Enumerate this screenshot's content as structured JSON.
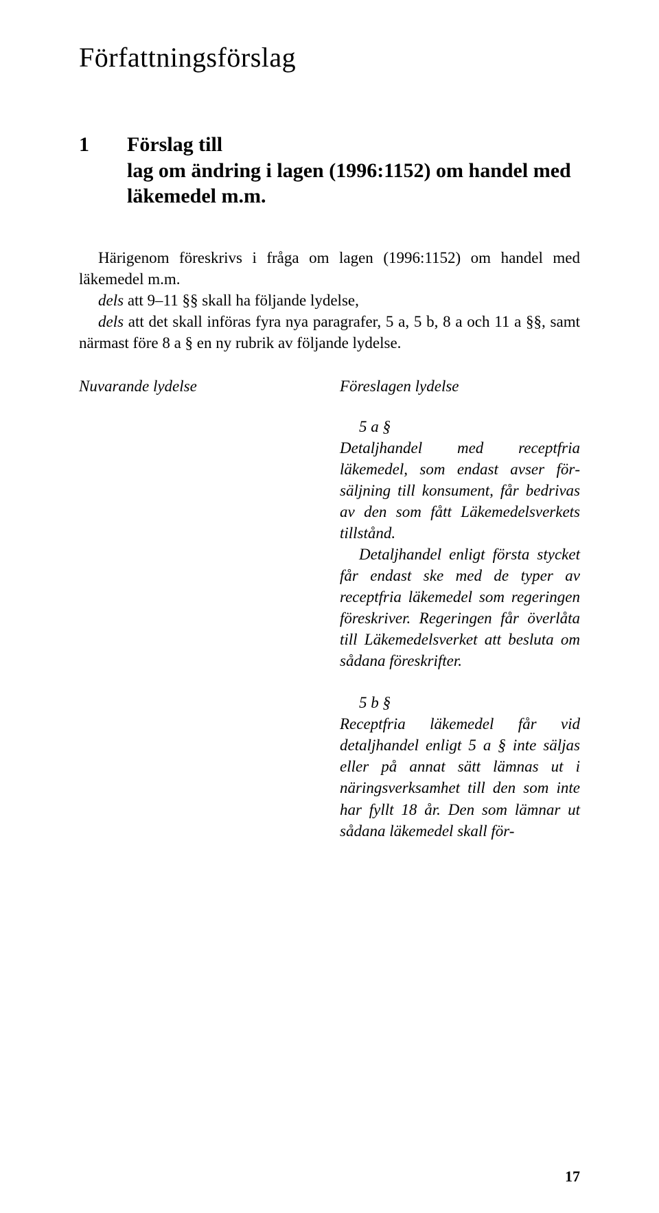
{
  "page": {
    "title": "Författningsförslag",
    "section_number": "1",
    "section_title_line1": "Förslag till",
    "section_title_line2": "lag om ändring i lagen (1996:1152) om handel med läkemedel m.m.",
    "intro_line1": "Härigenom föreskrivs i fråga om lagen (1996:1152) om handel med läkemedel m.m.",
    "intro_dels1_prefix": "dels",
    "intro_dels1_rest": " att 9–11 §§ skall ha följande lydelse,",
    "intro_dels2_prefix": "dels",
    "intro_dels2_rest": " att det skall införas fyra nya paragrafer, 5 a, 5 b, 8 a och 11 a §§, samt närmast före 8 a § en ny rubrik av följande lydelse.",
    "col_left_heading": "Nuvarande lydelse",
    "col_right_heading": "Föreslagen lydelse",
    "sec_5a_label": "5 a §",
    "sec_5a_p1": "Detaljhandel med receptfria läkemedel, som endast avser för­säljning till konsument, får be­drivas av den som fått Läke­medelsverkets tillstånd.",
    "sec_5a_p2": "Detaljhandel enligt första stycket får endast ske med de typer av receptfria läkemedel som reger­ingen föreskriver. Regeringen får överlåta till Läkemedelsverket att besluta om sådana föreskrifter.",
    "sec_5b_label": "5 b §",
    "sec_5b_p1": "Receptfria läkemedel får vid detaljhandel enligt 5 a § inte säl­jas eller på annat sätt lämnas ut i näringsverksamhet till den som inte har fyllt 18 år. Den som läm­nar ut sådana läkemedel skall för-",
    "page_number": "17"
  },
  "style": {
    "background_color": "#ffffff",
    "text_color": "#000000",
    "title_fontsize": 40,
    "subheading_fontsize": 30,
    "body_fontsize": 23,
    "pagenum_fontsize": 22
  }
}
